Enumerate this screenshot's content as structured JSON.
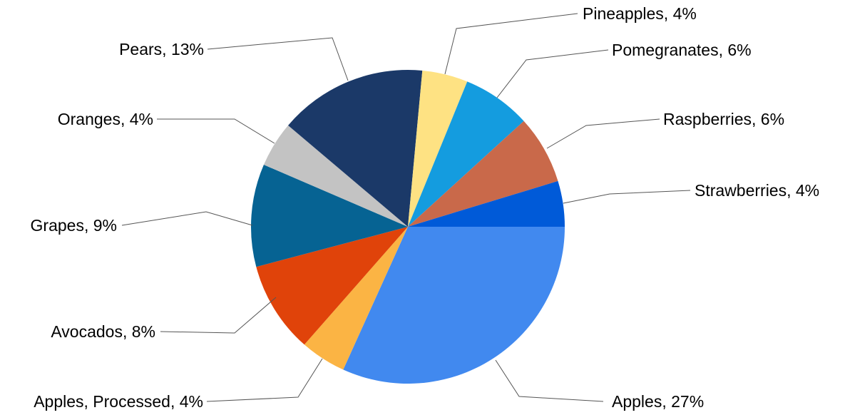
{
  "chart_data": {
    "type": "pie",
    "title": "",
    "start_angle_deg": 0,
    "direction": "clockwise-from-right",
    "slices": [
      {
        "name": "Apples",
        "value": 27,
        "label": "Apples, 27%",
        "color": "#4189ef"
      },
      {
        "name": "Apples, Processed",
        "value": 4,
        "label": "Apples, Processed, 4%",
        "color": "#fbb444"
      },
      {
        "name": "Avocados",
        "value": 8,
        "label": "Avocados, 8%",
        "color": "#e0430a"
      },
      {
        "name": "Grapes",
        "value": 9,
        "label": "Grapes, 9%",
        "color": "#066393"
      },
      {
        "name": "Oranges",
        "value": 4,
        "label": "Oranges, 4%",
        "color": "#c3c3c3"
      },
      {
        "name": "Pears",
        "value": 13,
        "label": "Pears, 13%",
        "color": "#1b3968"
      },
      {
        "name": "Pineapples",
        "value": 4,
        "label": "Pineapples, 4%",
        "color": "#fee283"
      },
      {
        "name": "Pomegranates",
        "value": 6,
        "label": "Pomegranates, 6%",
        "color": "#149cdf"
      },
      {
        "name": "Raspberries",
        "value": 6,
        "label": "Raspberries, 6%",
        "color": "#c9694a"
      },
      {
        "name": "Strawberries",
        "value": 4,
        "label": "Strawberries, 4%",
        "color": "#005ad8"
      }
    ]
  }
}
